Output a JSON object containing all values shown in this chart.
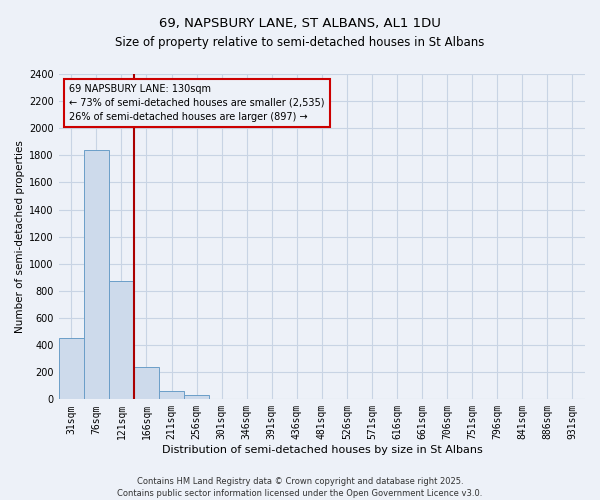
{
  "title": "69, NAPSBURY LANE, ST ALBANS, AL1 1DU",
  "subtitle": "Size of property relative to semi-detached houses in St Albans",
  "xlabel": "Distribution of semi-detached houses by size in St Albans",
  "ylabel": "Number of semi-detached properties",
  "footer": "Contains HM Land Registry data © Crown copyright and database right 2025.\nContains public sector information licensed under the Open Government Licence v3.0.",
  "categories": [
    "31sqm",
    "76sqm",
    "121sqm",
    "166sqm",
    "211sqm",
    "256sqm",
    "301sqm",
    "346sqm",
    "391sqm",
    "436sqm",
    "481sqm",
    "526sqm",
    "571sqm",
    "616sqm",
    "661sqm",
    "706sqm",
    "751sqm",
    "796sqm",
    "841sqm",
    "886sqm",
    "931sqm"
  ],
  "values": [
    450,
    1840,
    870,
    240,
    60,
    30,
    0,
    0,
    0,
    0,
    0,
    0,
    0,
    0,
    0,
    0,
    0,
    0,
    0,
    0,
    0
  ],
  "bar_color": "#cddaeb",
  "bar_edge_color": "#6b9ec8",
  "grid_color": "#c8d4e4",
  "bg_color": "#edf1f8",
  "annotation_box_text": "69 NAPSBURY LANE: 130sqm\n← 73% of semi-detached houses are smaller (2,535)\n26% of semi-detached houses are larger (897) →",
  "annotation_box_color": "#cc0000",
  "property_line_color": "#aa0000",
  "ylim": [
    0,
    2400
  ],
  "yticks": [
    0,
    200,
    400,
    600,
    800,
    1000,
    1200,
    1400,
    1600,
    1800,
    2000,
    2200,
    2400
  ],
  "title_fontsize": 9.5,
  "subtitle_fontsize": 8.5,
  "xlabel_fontsize": 8,
  "ylabel_fontsize": 7.5,
  "tick_fontsize": 7,
  "footer_fontsize": 6
}
